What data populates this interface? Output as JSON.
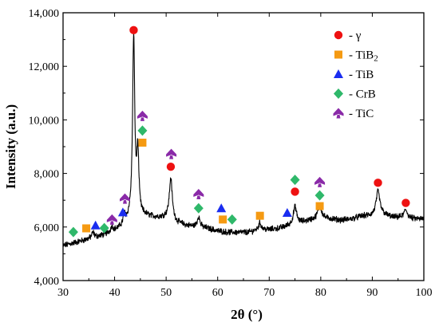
{
  "chart_data": {
    "type": "line",
    "xlabel": "2θ (°)",
    "ylabel": "Intensity (a.u.)",
    "xlim": [
      30,
      100
    ],
    "ylim": [
      4000,
      14000
    ],
    "xticks": [
      30,
      40,
      50,
      60,
      70,
      80,
      90,
      100
    ],
    "yticks": [
      4000,
      6000,
      8000,
      10000,
      12000,
      14000
    ],
    "ytick_labels": [
      "4,000",
      "6,000",
      "8,000",
      "10,000",
      "12,000",
      "14,000"
    ],
    "grid": false,
    "legend_position": "top-right",
    "line_color": "#000000",
    "baseline": [
      [
        30,
        5300
      ],
      [
        32,
        5400
      ],
      [
        34,
        5500
      ],
      [
        36,
        5600
      ],
      [
        38,
        5700
      ],
      [
        40,
        5850
      ],
      [
        42,
        6050
      ],
      [
        43,
        6300
      ],
      [
        46,
        6400
      ],
      [
        48,
        6350
      ],
      [
        50,
        6350
      ],
      [
        52,
        6150
      ],
      [
        54,
        6050
      ],
      [
        56,
        6000
      ],
      [
        58,
        5950
      ],
      [
        60,
        5850
      ],
      [
        62,
        5800
      ],
      [
        64,
        5800
      ],
      [
        66,
        5800
      ],
      [
        68,
        5900
      ],
      [
        70,
        5900
      ],
      [
        72,
        5950
      ],
      [
        74,
        6050
      ],
      [
        76,
        6150
      ],
      [
        78,
        6250
      ],
      [
        80,
        6300
      ],
      [
        82,
        6300
      ],
      [
        84,
        6250
      ],
      [
        86,
        6300
      ],
      [
        88,
        6400
      ],
      [
        90,
        6400
      ],
      [
        92,
        6450
      ],
      [
        94,
        6350
      ],
      [
        96,
        6350
      ],
      [
        98,
        6300
      ],
      [
        100,
        6300
      ]
    ],
    "peaks": [
      {
        "x": 43.7,
        "height": 6700,
        "width": 0.25
      },
      {
        "x": 44.5,
        "height": 2300,
        "width": 0.25
      },
      {
        "x": 50.9,
        "height": 1550,
        "width": 0.35
      },
      {
        "x": 56.3,
        "height": 400,
        "width": 0.3
      },
      {
        "x": 68.2,
        "height": 250,
        "width": 0.3
      },
      {
        "x": 75.0,
        "height": 650,
        "width": 0.4
      },
      {
        "x": 79.8,
        "height": 500,
        "width": 0.45
      },
      {
        "x": 91.1,
        "height": 900,
        "width": 0.45
      },
      {
        "x": 96.5,
        "height": 300,
        "width": 0.4
      },
      {
        "x": 35.8,
        "height": 200,
        "width": 0.3
      },
      {
        "x": 39.5,
        "height": 200,
        "width": 0.3
      },
      {
        "x": 41.9,
        "height": 350,
        "width": 0.3
      }
    ],
    "legend": [
      {
        "label": "- γ",
        "marker": "circle",
        "color": "#ee1111"
      },
      {
        "label": "- TiB2",
        "marker": "square",
        "color": "#f59a12"
      },
      {
        "label": "- TiB",
        "marker": "triangle",
        "color": "#1a2df0"
      },
      {
        "label": "- CrB",
        "marker": "diamond",
        "color": "#2fb86a"
      },
      {
        "label": "- TiC",
        "marker": "spade",
        "color": "#8a2aa8"
      }
    ],
    "markers": [
      {
        "phase": "γ",
        "x": 43.7,
        "y": 13350
      },
      {
        "phase": "γ",
        "x": 50.9,
        "y": 8250
      },
      {
        "phase": "γ",
        "x": 75.0,
        "y": 7320
      },
      {
        "phase": "γ",
        "x": 91.1,
        "y": 7650
      },
      {
        "phase": "γ",
        "x": 96.5,
        "y": 6900
      },
      {
        "phase": "TiB2",
        "x": 34.5,
        "y": 5950
      },
      {
        "phase": "TiB2",
        "x": 45.4,
        "y": 9150
      },
      {
        "phase": "TiB2",
        "x": 61.0,
        "y": 6280
      },
      {
        "phase": "TiB2",
        "x": 68.2,
        "y": 6420
      },
      {
        "phase": "TiB2",
        "x": 79.8,
        "y": 6780
      },
      {
        "phase": "TiB",
        "x": 36.3,
        "y": 6060
      },
      {
        "phase": "TiB",
        "x": 41.6,
        "y": 6550
      },
      {
        "phase": "TiB",
        "x": 60.7,
        "y": 6700
      },
      {
        "phase": "TiB",
        "x": 73.5,
        "y": 6530
      },
      {
        "phase": "CrB",
        "x": 32.0,
        "y": 5810
      },
      {
        "phase": "CrB",
        "x": 38.0,
        "y": 5960
      },
      {
        "phase": "CrB",
        "x": 45.4,
        "y": 9600
      },
      {
        "phase": "CrB",
        "x": 56.3,
        "y": 6700
      },
      {
        "phase": "CrB",
        "x": 62.8,
        "y": 6280
      },
      {
        "phase": "CrB",
        "x": 75.0,
        "y": 7760
      },
      {
        "phase": "CrB",
        "x": 79.8,
        "y": 7180
      },
      {
        "phase": "TiC",
        "x": 39.5,
        "y": 6280
      },
      {
        "phase": "TiC",
        "x": 42.0,
        "y": 7060
      },
      {
        "phase": "TiC",
        "x": 45.4,
        "y": 10150
      },
      {
        "phase": "TiC",
        "x": 51.0,
        "y": 8730
      },
      {
        "phase": "TiC",
        "x": 56.3,
        "y": 7230
      },
      {
        "phase": "TiC",
        "x": 79.8,
        "y": 7680
      }
    ]
  }
}
